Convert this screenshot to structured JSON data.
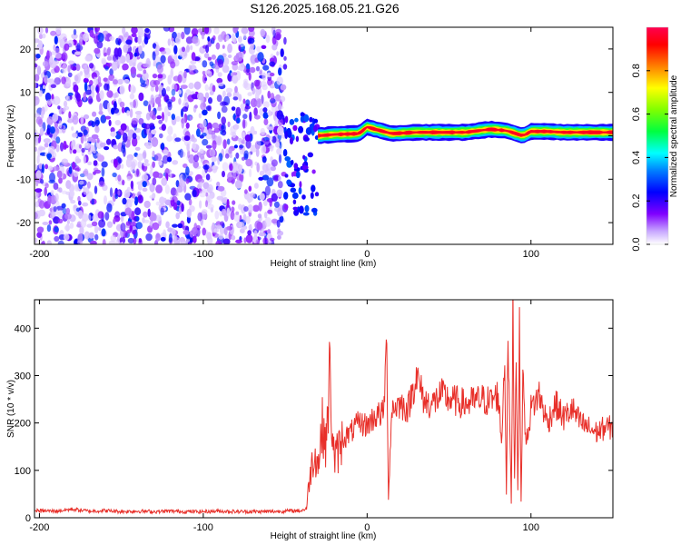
{
  "title": "S126.2025.168.05.21.G26",
  "chart_data": [
    {
      "type": "heatmap",
      "xlabel": "Height of straight line (km)",
      "ylabel": "Frequency (Hz)",
      "xlim": [
        -203,
        150
      ],
      "ylim": [
        -25,
        25
      ],
      "x_ticks": [
        -200,
        -100,
        0,
        100
      ],
      "y_ticks": [
        -20,
        -10,
        0,
        10,
        20
      ],
      "colorbar": {
        "label": "Normalized spectral amplitude",
        "range": [
          0.0,
          1.0
        ],
        "ticks": [
          0.0,
          0.2,
          0.4,
          0.6,
          0.8
        ],
        "tick_labels": [
          "0.0",
          "0.2",
          "0.4",
          "0.6",
          "0.8"
        ]
      },
      "regions": [
        {
          "x_range": [
            -203,
            -50
          ],
          "freq_range": [
            -25,
            25
          ],
          "amplitude": 0.1
        },
        {
          "x_range": [
            -50,
            -30
          ],
          "freq_range": [
            -18,
            5
          ],
          "amplitude": 0.2
        },
        {
          "x_range": [
            -30,
            150
          ],
          "freq_range": [
            -1,
            3
          ],
          "amplitude": 0.9
        }
      ],
      "ridge": [
        {
          "x": -30,
          "f": 0
        },
        {
          "x": -20,
          "f": 0.3
        },
        {
          "x": -5,
          "f": 0.5
        },
        {
          "x": 0,
          "f": 2
        },
        {
          "x": 5,
          "f": 1.5
        },
        {
          "x": 15,
          "f": 0.5
        },
        {
          "x": 30,
          "f": 0.8
        },
        {
          "x": 60,
          "f": 0.8
        },
        {
          "x": 75,
          "f": 1.5
        },
        {
          "x": 85,
          "f": 1.2
        },
        {
          "x": 95,
          "f": 0
        },
        {
          "x": 100,
          "f": 1
        },
        {
          "x": 110,
          "f": 1
        },
        {
          "x": 120,
          "f": 0.8
        },
        {
          "x": 150,
          "f": 0.8
        }
      ]
    },
    {
      "type": "line",
      "xlabel": "Height of straight line (km)",
      "ylabel": "SNR (10 * v/v)",
      "xlim": [
        -203,
        150
      ],
      "ylim": [
        0,
        460
      ],
      "x_ticks": [
        -200,
        -100,
        0,
        100
      ],
      "y_ticks": [
        0,
        100,
        200,
        300,
        400
      ],
      "series": [
        {
          "color": "#e8302a",
          "points": [
            [
              -203,
              15
            ],
            [
              -190,
              14
            ],
            [
              -180,
              18
            ],
            [
              -170,
              14
            ],
            [
              -160,
              15
            ],
            [
              -150,
              13
            ],
            [
              -140,
              14
            ],
            [
              -130,
              13
            ],
            [
              -120,
              14
            ],
            [
              -110,
              13
            ],
            [
              -100,
              13
            ],
            [
              -90,
              14
            ],
            [
              -80,
              13
            ],
            [
              -70,
              13
            ],
            [
              -60,
              13
            ],
            [
              -50,
              14
            ],
            [
              -40,
              15
            ],
            [
              -37,
              20
            ],
            [
              -35,
              90
            ],
            [
              -32,
              140
            ],
            [
              -30,
              110
            ],
            [
              -27,
              200
            ],
            [
              -25,
              150
            ],
            [
              -23,
              300
            ],
            [
              -20,
              120
            ],
            [
              -15,
              165
            ],
            [
              -10,
              180
            ],
            [
              -5,
              200
            ],
            [
              0,
              195
            ],
            [
              5,
              215
            ],
            [
              10,
              220
            ],
            [
              12,
              370
            ],
            [
              13,
              40
            ],
            [
              15,
              230
            ],
            [
              20,
              240
            ],
            [
              25,
              230
            ],
            [
              30,
              300
            ],
            [
              35,
              245
            ],
            [
              40,
              240
            ],
            [
              45,
              260
            ],
            [
              50,
              250
            ],
            [
              55,
              245
            ],
            [
              60,
              240
            ],
            [
              65,
              245
            ],
            [
              70,
              250
            ],
            [
              75,
              245
            ],
            [
              80,
              260
            ],
            [
              82,
              160
            ],
            [
              84,
              340
            ],
            [
              85,
              50
            ],
            [
              86,
              380
            ],
            [
              88,
              30
            ],
            [
              89,
              450
            ],
            [
              90,
              80
            ],
            [
              91,
              350
            ],
            [
              92,
              60
            ],
            [
              93,
              390
            ],
            [
              94,
              30
            ],
            [
              95,
              300
            ],
            [
              97,
              150
            ],
            [
              100,
              230
            ],
            [
              105,
              260
            ],
            [
              110,
              200
            ],
            [
              115,
              240
            ],
            [
              120,
              210
            ],
            [
              125,
              230
            ],
            [
              130,
              200
            ],
            [
              135,
              190
            ],
            [
              140,
              180
            ],
            [
              145,
              190
            ],
            [
              150,
              190
            ]
          ]
        }
      ]
    }
  ]
}
